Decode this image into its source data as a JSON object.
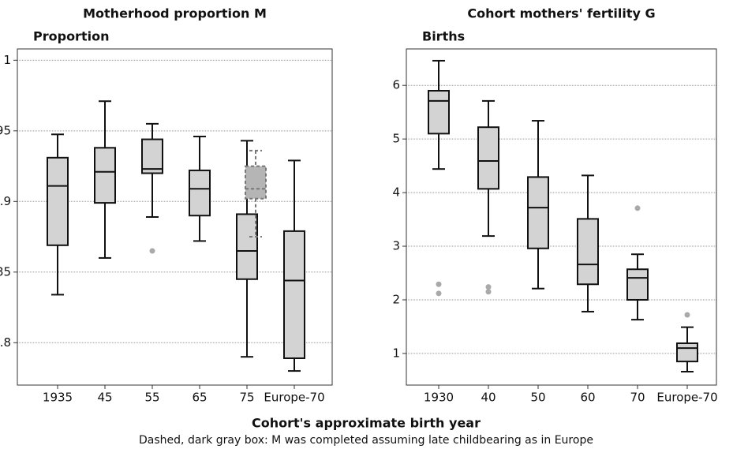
{
  "chart_data": [
    {
      "type": "box",
      "title": "Motherhood proportion M",
      "ylabel": "Proportion",
      "categories": [
        "1935",
        "45",
        "55",
        "65",
        "75",
        "Europe-70"
      ],
      "boxes": [
        {
          "whislo": 0.834,
          "q1": 0.869,
          "med": 0.911,
          "q3": 0.931,
          "whishi": 0.9475,
          "fliers": []
        },
        {
          "whislo": 0.86,
          "q1": 0.899,
          "med": 0.921,
          "q3": 0.938,
          "whishi": 0.971,
          "fliers": []
        },
        {
          "whislo": 0.889,
          "q1": 0.92,
          "med": 0.923,
          "q3": 0.944,
          "whishi": 0.955,
          "fliers": [
            0.865
          ]
        },
        {
          "whislo": 0.872,
          "q1": 0.89,
          "med": 0.909,
          "q3": 0.922,
          "whishi": 0.946,
          "fliers": []
        },
        {
          "whislo": 0.79,
          "q1": 0.845,
          "med": 0.865,
          "q3": 0.891,
          "whishi": 0.943,
          "fliers": []
        },
        {
          "whislo": 0.78,
          "q1": 0.789,
          "med": 0.844,
          "q3": 0.879,
          "whishi": 0.929,
          "fliers": []
        }
      ],
      "dashed_boxes": [
        null,
        null,
        null,
        null,
        {
          "whislo": 0.875,
          "q1": 0.902,
          "med": 0.909,
          "q3": 0.925,
          "whishi": 0.936,
          "fliers": []
        },
        null
      ],
      "box_color": "#d3d3d3",
      "dashed_color": "#b5b5b5",
      "flier_color": "#a9a9a9",
      "ylim": [
        0.77,
        1.008
      ],
      "yticks": [
        {
          "value": 0.8,
          "label": ".8"
        },
        {
          "value": 0.85,
          "label": ".85"
        },
        {
          "value": 0.9,
          "label": ".9"
        },
        {
          "value": 0.95,
          "label": ".95"
        },
        1
      ],
      "grid": true
    },
    {
      "type": "box",
      "title": "Cohort mothers' fertility G",
      "ylabel": "Births",
      "categories": [
        "1930",
        "40",
        "50",
        "60",
        "70",
        "Europe-70"
      ],
      "boxes": [
        {
          "whislo": 4.44,
          "q1": 5.1,
          "med": 5.71,
          "q3": 5.9,
          "whishi": 6.46,
          "fliers": [
            2.29,
            2.12
          ]
        },
        {
          "whislo": 3.19,
          "q1": 4.07,
          "med": 4.59,
          "q3": 5.22,
          "whishi": 5.71,
          "fliers": [
            2.24,
            2.15
          ]
        },
        {
          "whislo": 2.21,
          "q1": 2.96,
          "med": 3.72,
          "q3": 4.29,
          "whishi": 5.34,
          "fliers": []
        },
        {
          "whislo": 1.78,
          "q1": 2.29,
          "med": 2.66,
          "q3": 3.51,
          "whishi": 4.32,
          "fliers": []
        },
        {
          "whislo": 1.63,
          "q1": 2.0,
          "med": 2.41,
          "q3": 2.57,
          "whishi": 2.85,
          "fliers": [
            3.71
          ]
        },
        {
          "whislo": 0.66,
          "q1": 0.85,
          "med": 1.1,
          "q3": 1.19,
          "whishi": 1.49,
          "fliers": [
            1.72
          ]
        }
      ],
      "box_color": "#d3d3d3",
      "flier_color": "#a9a9a9",
      "ylim": [
        0.41,
        6.68
      ],
      "yticks": [
        1,
        2,
        3,
        4,
        5,
        6
      ],
      "grid": true
    }
  ],
  "figure": {
    "xlabel": "Cohort's approximate birth year",
    "note": "Dashed, dark gray box: M was completed assuming late childbearing as in Europe"
  }
}
